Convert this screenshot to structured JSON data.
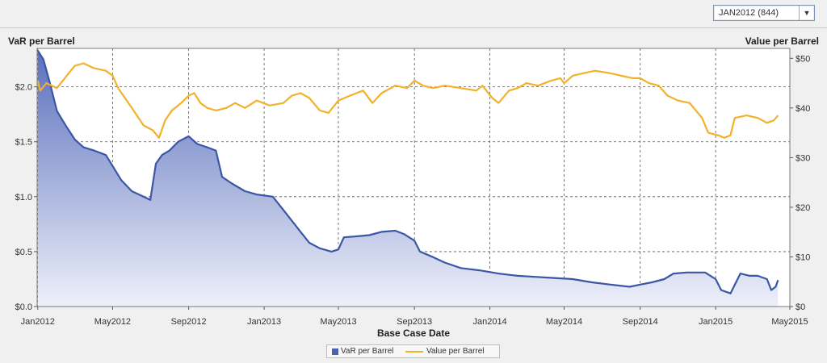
{
  "selector": {
    "value": "JAN2012 (844)",
    "arrow": "▼"
  },
  "chart_data": {
    "type": "line",
    "xlabel": "Base Case Date",
    "x_ticks": [
      "Jan2012",
      "May2012",
      "Sep2012",
      "Jan2013",
      "May2013",
      "Sep2013",
      "Jan2014",
      "May2014",
      "Sep2014",
      "Jan2015",
      "May2015"
    ],
    "x_range": [
      "2011-12-31",
      "2015-05-01"
    ],
    "y_left": {
      "label": "VaR per Barrel",
      "range": [
        0,
        2.35
      ],
      "ticks": [
        0,
        0.5,
        1,
        1.5,
        2
      ],
      "tick_labels": [
        "$0.0",
        "$0.5",
        "$1.0",
        "$1.5",
        "$2.0"
      ]
    },
    "y_right": {
      "label": "Value per Barrel",
      "range": [
        0,
        52
      ],
      "ticks": [
        0,
        10,
        20,
        30,
        40,
        50
      ],
      "tick_labels": [
        "$0",
        "$10",
        "$20",
        "$30",
        "$40",
        "$50"
      ]
    },
    "grid": true,
    "legend_position": "bottom",
    "colors": {
      "var": "#3a56a5",
      "var_fill_top": "#5a70bd",
      "var_fill_bottom": "#eef0f9",
      "value": "#f2b12a"
    },
    "series": [
      {
        "name": "VaR per Barrel",
        "axis": "left",
        "style": "area",
        "points": [
          [
            "2012-01-01",
            2.33
          ],
          [
            "2012-01-10",
            2.25
          ],
          [
            "2012-01-20",
            2.05
          ],
          [
            "2012-02-01",
            1.78
          ],
          [
            "2012-02-15",
            1.65
          ],
          [
            "2012-03-01",
            1.52
          ],
          [
            "2012-03-15",
            1.45
          ],
          [
            "2012-04-01",
            1.42
          ],
          [
            "2012-04-20",
            1.38
          ],
          [
            "2012-05-01",
            1.28
          ],
          [
            "2012-05-15",
            1.15
          ],
          [
            "2012-06-01",
            1.05
          ],
          [
            "2012-06-20",
            1.0
          ],
          [
            "2012-07-01",
            0.97
          ],
          [
            "2012-07-10",
            1.3
          ],
          [
            "2012-07-20",
            1.38
          ],
          [
            "2012-08-01",
            1.42
          ],
          [
            "2012-08-15",
            1.5
          ],
          [
            "2012-09-01",
            1.55
          ],
          [
            "2012-09-15",
            1.48
          ],
          [
            "2012-10-01",
            1.45
          ],
          [
            "2012-10-15",
            1.42
          ],
          [
            "2012-10-25",
            1.18
          ],
          [
            "2012-11-10",
            1.12
          ],
          [
            "2012-12-01",
            1.05
          ],
          [
            "2012-12-20",
            1.02
          ],
          [
            "2013-01-15",
            1.0
          ],
          [
            "2013-02-01",
            0.88
          ],
          [
            "2013-02-15",
            0.78
          ],
          [
            "2013-03-01",
            0.68
          ],
          [
            "2013-03-15",
            0.58
          ],
          [
            "2013-04-01",
            0.53
          ],
          [
            "2013-04-20",
            0.5
          ],
          [
            "2013-05-01",
            0.52
          ],
          [
            "2013-05-10",
            0.63
          ],
          [
            "2013-06-01",
            0.64
          ],
          [
            "2013-06-20",
            0.65
          ],
          [
            "2013-07-10",
            0.68
          ],
          [
            "2013-08-01",
            0.69
          ],
          [
            "2013-08-15",
            0.66
          ],
          [
            "2013-09-01",
            0.6
          ],
          [
            "2013-09-10",
            0.5
          ],
          [
            "2013-10-01",
            0.45
          ],
          [
            "2013-10-20",
            0.4
          ],
          [
            "2013-11-15",
            0.35
          ],
          [
            "2013-12-15",
            0.33
          ],
          [
            "2014-01-15",
            0.3
          ],
          [
            "2014-02-15",
            0.28
          ],
          [
            "2014-03-15",
            0.27
          ],
          [
            "2014-04-15",
            0.26
          ],
          [
            "2014-05-15",
            0.25
          ],
          [
            "2014-06-15",
            0.22
          ],
          [
            "2014-07-15",
            0.2
          ],
          [
            "2014-08-15",
            0.18
          ],
          [
            "2014-09-01",
            0.2
          ],
          [
            "2014-09-20",
            0.22
          ],
          [
            "2014-10-10",
            0.25
          ],
          [
            "2014-10-25",
            0.3
          ],
          [
            "2014-11-15",
            0.31
          ],
          [
            "2014-12-15",
            0.31
          ],
          [
            "2015-01-01",
            0.25
          ],
          [
            "2015-01-10",
            0.15
          ],
          [
            "2015-01-25",
            0.12
          ],
          [
            "2015-02-10",
            0.3
          ],
          [
            "2015-02-25",
            0.28
          ],
          [
            "2015-03-10",
            0.28
          ],
          [
            "2015-03-25",
            0.25
          ],
          [
            "2015-04-01",
            0.15
          ],
          [
            "2015-04-08",
            0.18
          ],
          [
            "2015-04-12",
            0.24
          ]
        ]
      },
      {
        "name": "Value per Barrel",
        "axis": "right",
        "style": "line",
        "points": [
          [
            "2012-01-01",
            45.5
          ],
          [
            "2012-01-05",
            43.5
          ],
          [
            "2012-01-15",
            45.0
          ],
          [
            "2012-02-01",
            44.0
          ],
          [
            "2012-02-20",
            47.0
          ],
          [
            "2012-03-01",
            48.5
          ],
          [
            "2012-03-15",
            49.0
          ],
          [
            "2012-04-01",
            48.0
          ],
          [
            "2012-04-20",
            47.5
          ],
          [
            "2012-05-01",
            46.5
          ],
          [
            "2012-05-10",
            44.0
          ],
          [
            "2012-06-01",
            40.0
          ],
          [
            "2012-06-20",
            36.5
          ],
          [
            "2012-07-05",
            35.5
          ],
          [
            "2012-07-15",
            34.0
          ],
          [
            "2012-07-25",
            37.5
          ],
          [
            "2012-08-05",
            39.5
          ],
          [
            "2012-08-20",
            41.0
          ],
          [
            "2012-09-01",
            42.5
          ],
          [
            "2012-09-10",
            43.0
          ],
          [
            "2012-09-20",
            41.0
          ],
          [
            "2012-10-01",
            40.0
          ],
          [
            "2012-10-15",
            39.5
          ],
          [
            "2012-11-01",
            40.0
          ],
          [
            "2012-11-15",
            41.0
          ],
          [
            "2012-12-01",
            40.0
          ],
          [
            "2012-12-20",
            41.5
          ],
          [
            "2013-01-10",
            40.5
          ],
          [
            "2013-02-01",
            41.0
          ],
          [
            "2013-02-15",
            42.5
          ],
          [
            "2013-03-01",
            43.0
          ],
          [
            "2013-03-15",
            42.0
          ],
          [
            "2013-04-01",
            39.5
          ],
          [
            "2013-04-15",
            39.0
          ],
          [
            "2013-05-01",
            41.5
          ],
          [
            "2013-05-20",
            42.5
          ],
          [
            "2013-06-10",
            43.5
          ],
          [
            "2013-06-25",
            41.0
          ],
          [
            "2013-07-10",
            43.0
          ],
          [
            "2013-08-01",
            44.5
          ],
          [
            "2013-08-20",
            44.0
          ],
          [
            "2013-09-01",
            45.5
          ],
          [
            "2013-09-15",
            44.5
          ],
          [
            "2013-10-01",
            44.0
          ],
          [
            "2013-10-20",
            44.5
          ],
          [
            "2013-11-15",
            44.0
          ],
          [
            "2013-12-10",
            43.5
          ],
          [
            "2013-12-20",
            44.5
          ],
          [
            "2014-01-05",
            42.0
          ],
          [
            "2014-01-15",
            41.0
          ],
          [
            "2014-02-01",
            43.5
          ],
          [
            "2014-02-15",
            44.0
          ],
          [
            "2014-03-01",
            45.0
          ],
          [
            "2014-03-20",
            44.5
          ],
          [
            "2014-04-10",
            45.5
          ],
          [
            "2014-04-25",
            46.0
          ],
          [
            "2014-05-01",
            45.0
          ],
          [
            "2014-05-15",
            46.5
          ],
          [
            "2014-06-01",
            47.0
          ],
          [
            "2014-06-20",
            47.5
          ],
          [
            "2014-07-15",
            47.0
          ],
          [
            "2014-08-01",
            46.5
          ],
          [
            "2014-08-20",
            46.0
          ],
          [
            "2014-09-01",
            46.0
          ],
          [
            "2014-09-15",
            45.0
          ],
          [
            "2014-10-01",
            44.5
          ],
          [
            "2014-10-15",
            42.5
          ],
          [
            "2014-11-01",
            41.5
          ],
          [
            "2014-11-20",
            41.0
          ],
          [
            "2014-12-10",
            38.0
          ],
          [
            "2014-12-20",
            35.0
          ],
          [
            "2015-01-05",
            34.5
          ],
          [
            "2015-01-15",
            34.0
          ],
          [
            "2015-01-25",
            34.5
          ],
          [
            "2015-02-01",
            38.0
          ],
          [
            "2015-02-20",
            38.5
          ],
          [
            "2015-03-10",
            38.0
          ],
          [
            "2015-03-25",
            37.0
          ],
          [
            "2015-04-05",
            37.5
          ],
          [
            "2015-04-12",
            38.5
          ]
        ]
      }
    ]
  }
}
